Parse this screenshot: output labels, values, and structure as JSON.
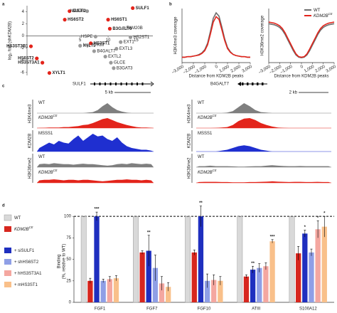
{
  "panel_labels": [
    "a",
    "b",
    "c",
    "d"
  ],
  "chart_data": [
    {
      "type": "scatter",
      "xlabel": "log₂ RPKM",
      "ylabel": "log₂ fold (shKDM2B)",
      "xlim": [
        -4.5,
        18
      ],
      "ylim": [
        -6.5,
        5
      ],
      "xticks": [
        5,
        10,
        15
      ],
      "yticks": [
        -6,
        -4,
        -2,
        0,
        2,
        4
      ],
      "series": [
        {
          "color": "#e3241b",
          "labels": [
            "SULF2",
            "HS6ST2",
            "SULF1",
            "HS6ST1",
            "B3GALT6",
            "HS3ST3B1",
            "HS6ST2",
            "HS3ST1",
            "HS3ST3A1",
            "XYLT1"
          ],
          "x": [
            3.1,
            2.25,
            14.4,
            10,
            10.3,
            -3.8,
            -2.75,
            6.9,
            -1.75,
            -0.5
          ],
          "values": [
            4.1,
            2.7,
            4.6,
            2.7,
            1.2,
            -1.7,
            -3.7,
            -1.2,
            -4.4,
            -6.1
          ]
        },
        {
          "color": "#9a9a9a",
          "labels": [
            "NDST3",
            "FAM20B",
            "HSPE",
            "EXT1",
            "HS2ST1",
            "XYLT2",
            "EXTL3",
            "B4GALT7",
            "EXTL2",
            "GLCE",
            "B3GAT3"
          ],
          "x": [
            6.25,
            12.75,
            7.75,
            12.25,
            14,
            5,
            11.5,
            7.5,
            9.5,
            10.5,
            11
          ],
          "values": [
            4.1,
            1.3,
            -0.1,
            -1.0,
            -0.2,
            -1.6,
            -2.1,
            -2.5,
            -3.4,
            -4.4,
            -5.3
          ]
        }
      ]
    },
    {
      "type": "line",
      "xlabel": "Distance from KDM2B peaks",
      "ylabel": "H3K4me3 coverage",
      "xlim": [
        -3000,
        3000
      ],
      "ylim": [
        0,
        1
      ],
      "xticks": [
        {
          "value": -3000,
          "label": "–3,000"
        },
        {
          "value": -2000,
          "label": "–2,000"
        },
        {
          "value": -1000,
          "label": "–1,000"
        },
        0,
        {
          "value": 1000,
          "label": "1,000"
        },
        {
          "value": 2000,
          "label": "2,000"
        },
        {
          "value": 3000,
          "label": "3,000"
        }
      ],
      "x": [
        -3000,
        -2750,
        -2500,
        -2250,
        -2000,
        -1750,
        -1500,
        -1250,
        -1000,
        -750,
        -500,
        -250,
        0,
        250,
        500,
        750,
        1000,
        1250,
        1500,
        1750,
        2000,
        2250,
        2500,
        2750,
        3000
      ],
      "series": [
        {
          "color": "#6e6e6e",
          "values": [
            0.1,
            0.1,
            0.11,
            0.11,
            0.12,
            0.13,
            0.15,
            0.18,
            0.24,
            0.36,
            0.58,
            0.82,
            0.92,
            0.86,
            0.66,
            0.44,
            0.28,
            0.2,
            0.15,
            0.13,
            0.12,
            0.11,
            0.11,
            0.1,
            0.1
          ]
        },
        {
          "color": "#e3241b",
          "values": [
            0.1,
            0.1,
            0.11,
            0.11,
            0.12,
            0.13,
            0.14,
            0.17,
            0.22,
            0.33,
            0.53,
            0.75,
            0.85,
            0.8,
            0.61,
            0.41,
            0.26,
            0.19,
            0.15,
            0.13,
            0.12,
            0.11,
            0.11,
            0.1,
            0.1
          ]
        }
      ]
    },
    {
      "type": "line",
      "xlabel": "Distance from KDM2B peaks",
      "ylabel": "H3K36me2 coverage",
      "xlim": [
        -3000,
        3000
      ],
      "ylim": [
        0,
        1
      ],
      "legend": "top-right",
      "xticks": [
        {
          "value": -3000,
          "label": "–3,000"
        },
        {
          "value": -2000,
          "label": "–2,000"
        },
        {
          "value": -1000,
          "label": "–1,000"
        },
        0,
        {
          "value": 1000,
          "label": "1,000"
        },
        {
          "value": 2000,
          "label": "2,000"
        },
        {
          "value": 3000,
          "label": "3,000"
        }
      ],
      "x": [
        -3000,
        -2750,
        -2500,
        -2250,
        -2000,
        -1750,
        -1500,
        -1250,
        -1000,
        -750,
        -500,
        -250,
        0,
        250,
        500,
        750,
        1000,
        1250,
        1500,
        1750,
        2000,
        2250,
        2500,
        2750,
        3000
      ],
      "series": [
        {
          "name": "WT",
          "color": "#6e6e6e",
          "values": [
            0.72,
            0.71,
            0.7,
            0.68,
            0.65,
            0.6,
            0.52,
            0.42,
            0.32,
            0.22,
            0.14,
            0.1,
            0.09,
            0.1,
            0.14,
            0.22,
            0.32,
            0.42,
            0.52,
            0.6,
            0.65,
            0.68,
            0.7,
            0.71,
            0.72
          ]
        },
        {
          "name": "KDM2B",
          "name_sup": "CE",
          "color": "#e3241b",
          "values": [
            0.75,
            0.74,
            0.73,
            0.71,
            0.68,
            0.63,
            0.55,
            0.45,
            0.35,
            0.25,
            0.16,
            0.11,
            0.1,
            0.11,
            0.16,
            0.25,
            0.35,
            0.45,
            0.55,
            0.63,
            0.68,
            0.71,
            0.73,
            0.74,
            0.75
          ]
        }
      ]
    },
    {
      "type": "tracks",
      "ylim": [
        0,
        1
      ],
      "groups": [
        {
          "label": "H3K4me3",
          "tracks": [
            {
              "name": "WT",
              "color": "#7f7f7f"
            },
            {
              "name": "KDM2B",
              "name_sup": "CE",
              "color": "#e3241b"
            }
          ]
        },
        {
          "label": "KDM2B",
          "tracks": [
            {
              "name": "MSSS1",
              "color": "#1f2fd0"
            }
          ]
        },
        {
          "label": "H3K36me2",
          "tracks": [
            {
              "name": "WT",
              "color": "#7f7f7f"
            },
            {
              "name": "KDM2B",
              "name_sup": "CE",
              "color": "#e3241b"
            }
          ]
        }
      ],
      "loci": [
        {
          "gene": "SULF1",
          "scale": "5 kb",
          "signals": [
            [
              0,
              0,
              0,
              0,
              0,
              0,
              0,
              0,
              0,
              0,
              0.05,
              0.1,
              0.3,
              0.7,
              1,
              0.6,
              0.3,
              0.15,
              0.05,
              0,
              0,
              0,
              0,
              0
            ],
            [
              0.02,
              0.03,
              0.05,
              0.05,
              0.05,
              0.1,
              0.1,
              0.15,
              0.2,
              0.3,
              0.35,
              0.5,
              0.7,
              0.9,
              1,
              0.8,
              0.6,
              0.45,
              0.3,
              0.2,
              0.1,
              0.05,
              0.05,
              0.03
            ],
            [
              0.2,
              0.35,
              0.5,
              0.4,
              0.6,
              0.5,
              0.45,
              0.7,
              0.9,
              0.6,
              0.8,
              1,
              0.85,
              0.9,
              0.7,
              0.6,
              0.8,
              0.5,
              0.3,
              0.2,
              0.15,
              0.1,
              0.1,
              0.05
            ],
            [
              0.3,
              0.35,
              0.3,
              0.4,
              0.35,
              0.3,
              0.3,
              0.25,
              0.3,
              0.35,
              0.3,
              0.3,
              0.25,
              0.2,
              0.15,
              0.2,
              0.3,
              0.35,
              0.3,
              0.4,
              0.35,
              0.3,
              0.35,
              0.3
            ],
            [
              0.25,
              0.3,
              0.3,
              0.35,
              0.3,
              0.25,
              0.3,
              0.3,
              0.25,
              0.3,
              0.3,
              0.25,
              0.2,
              0.15,
              0.2,
              0.25,
              0.3,
              0.3,
              0.35,
              0.3,
              0.3,
              0.25,
              0.3,
              0.25
            ]
          ]
        },
        {
          "gene": "B4GALT7",
          "scale": "2 kb",
          "signals": [
            [
              0,
              0,
              0,
              0,
              0,
              0.05,
              0.2,
              0.6,
              1,
              0.7,
              0.3,
              0.1,
              0.05,
              0,
              0,
              0,
              0,
              0,
              0,
              0,
              0,
              0,
              0,
              0
            ],
            [
              0,
              0,
              0,
              0.02,
              0.05,
              0.1,
              0.3,
              0.7,
              0.95,
              1,
              0.8,
              0.5,
              0.3,
              0.15,
              0.05,
              0.02,
              0,
              0,
              0,
              0,
              0,
              0,
              0,
              0
            ],
            [
              0,
              0,
              0,
              0,
              0.05,
              0.1,
              0.2,
              0.3,
              0.35,
              0.3,
              0.2,
              0.1,
              0.05,
              0,
              0,
              0,
              0,
              0,
              0,
              0,
              0,
              0,
              0,
              0
            ],
            [
              0.1,
              0.1,
              0.15,
              0.1,
              0.1,
              0.1,
              0.08,
              0.05,
              0.05,
              0.08,
              0.1,
              0.1,
              0.15,
              0.2,
              0.15,
              0.12,
              0.1,
              0.1,
              0.12,
              0.1,
              0.1,
              0.1,
              0.1,
              0.1
            ],
            [
              0.08,
              0.1,
              0.1,
              0.1,
              0.08,
              0.08,
              0.05,
              0.05,
              0.05,
              0.08,
              0.08,
              0.1,
              0.12,
              0.15,
              0.12,
              0.1,
              0.08,
              0.1,
              0.1,
              0.08,
              0.08,
              0.1,
              0.08,
              0.08
            ]
          ]
        }
      ]
    },
    {
      "type": "bar",
      "ylabel": [
        "Binding",
        "(%, relative to WT)"
      ],
      "ylim": [
        0,
        120
      ],
      "yticks": [
        0,
        25,
        50,
        75,
        100
      ],
      "reference_line": 100,
      "legend": "left",
      "categories": [
        "FGF1",
        "FGF7",
        "FGF10",
        "ATIII",
        "S100A12"
      ],
      "series": [
        {
          "name": "WT",
          "color": "#d9d9d9",
          "values": [
            100,
            100,
            100,
            100,
            100
          ],
          "errors": [
            0,
            0,
            0,
            0,
            0
          ],
          "significance": [
            null,
            null,
            null,
            null,
            null
          ]
        },
        {
          "name": "KDM2B",
          "name_sup": "CE",
          "color": "#d7261e",
          "values": [
            25,
            58,
            58,
            30,
            57
          ],
          "errors": [
            3,
            2,
            3,
            2,
            8
          ],
          "significance": [
            null,
            null,
            null,
            null,
            null
          ]
        },
        {
          "name": "+ siSULF1",
          "color": "#1f2fbf",
          "values": [
            100,
            60,
            100,
            38,
            80
          ],
          "errors": [
            5,
            18,
            12,
            4,
            4
          ],
          "significance": [
            "***",
            "**",
            "**",
            "**",
            "*"
          ]
        },
        {
          "name": "+ shHS6ST2",
          "color": "#8f9fe6",
          "values": [
            25,
            40,
            25,
            40,
            58
          ],
          "errors": [
            2,
            15,
            8,
            5,
            4
          ],
          "significance": [
            null,
            null,
            null,
            null,
            null
          ]
        },
        {
          "name": "+ hHS3ST3A1",
          "color": "#f4a7a0",
          "values": [
            27,
            22,
            26,
            42,
            85
          ],
          "errors": [
            3,
            8,
            6,
            4,
            10
          ],
          "significance": [
            null,
            null,
            null,
            null,
            "*"
          ]
        },
        {
          "name": "+ mHS3ST1",
          "color": "#f9c08a",
          "values": [
            28,
            18,
            25,
            71,
            88
          ],
          "errors": [
            3,
            5,
            5,
            2,
            12
          ],
          "significance": [
            null,
            null,
            null,
            "***",
            "*"
          ]
        }
      ]
    }
  ]
}
